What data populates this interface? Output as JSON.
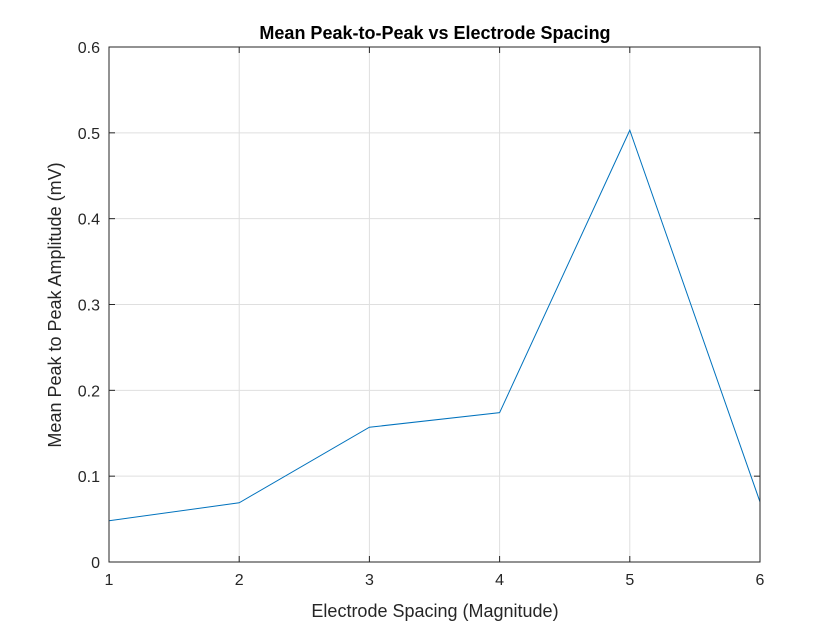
{
  "chart_data": {
    "type": "line",
    "title": "Mean Peak-to-Peak vs Electrode Spacing",
    "xlabel": "Electrode Spacing (Magnitude)",
    "ylabel": "Mean Peak to Peak Amplitude (mV)",
    "xlim": [
      1,
      6
    ],
    "ylim": [
      0,
      0.6
    ],
    "xticks": [
      1,
      2,
      3,
      4,
      5,
      6
    ],
    "xtick_labels": [
      "1",
      "2",
      "3",
      "4",
      "5",
      "6"
    ],
    "yticks": [
      0,
      0.1,
      0.2,
      0.3,
      0.4,
      0.5,
      0.6
    ],
    "ytick_labels": [
      "0",
      "0.1",
      "0.2",
      "0.3",
      "0.4",
      "0.5",
      "0.6"
    ],
    "grid": true,
    "legend": false,
    "series": [
      {
        "x": [
          1,
          2,
          3,
          4,
          5,
          6
        ],
        "values": [
          0.048,
          0.069,
          0.157,
          0.174,
          0.503,
          0.07
        ],
        "color": "#0072bd"
      }
    ]
  }
}
